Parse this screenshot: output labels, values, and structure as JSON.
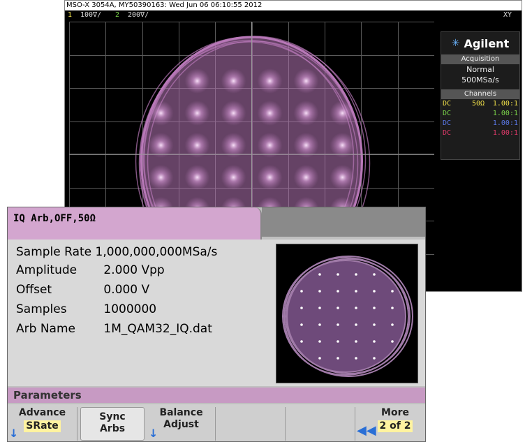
{
  "scope": {
    "title": "MSO-X 3054A, MY50390163: Wed Jun 06 06:10:55 2012",
    "ch1_num": "1",
    "ch1_scale": "100∇/",
    "ch2_num": "2",
    "ch2_scale": "200∇/",
    "mode": "XY",
    "brand": "Agilent",
    "acquisition": {
      "header": "Acquisition",
      "mode": "Normal",
      "rate": "500MSa/s"
    },
    "channels": {
      "header": "Channels",
      "rows": [
        {
          "coupling": "DC",
          "impedance": "50Ω",
          "probe": "1.00:1",
          "color": "#f0e04a"
        },
        {
          "coupling": "DC",
          "impedance": "",
          "probe": "1.00:1",
          "color": "#7cd44a"
        },
        {
          "coupling": "DC",
          "impedance": "",
          "probe": "1.00:1",
          "color": "#5a78e6"
        },
        {
          "coupling": "DC",
          "impedance": "",
          "probe": "1.00:1",
          "color": "#e03a6a"
        }
      ]
    },
    "colors": {
      "trace": "#b878b8",
      "grid": "#5a5a5a",
      "ch1": "#f0e04a",
      "ch2": "#7cd44a"
    }
  },
  "generator": {
    "tab_label": "IQ Arb,OFF,50Ω",
    "params": [
      {
        "label": "Sample Rate",
        "value": "1,000,000,000MSa/s"
      },
      {
        "label": "Amplitude",
        "value": "2.000 Vpp"
      },
      {
        "label": "Offset",
        "value": "0.000 V"
      },
      {
        "label": "Samples",
        "value": "1000000"
      },
      {
        "label": "Arb Name",
        "value": "1M_QAM32_IQ.dat"
      }
    ],
    "section": "Parameters",
    "softkeys": {
      "advance_top": "Advance",
      "advance_bottom": "SRate",
      "sync_top": "Sync",
      "sync_bottom": "Arbs",
      "balance_top": "Balance",
      "balance_bottom": "Adjust",
      "more_top": "More",
      "more_bottom": "2 of 2"
    },
    "colors": {
      "tab": "#d3a6cf",
      "bar": "#c79ac3",
      "accent": "#2a6fd6"
    },
    "icons": {
      "down_arrow": "arrow-down-icon",
      "more": "double-left-arrow-icon"
    }
  }
}
